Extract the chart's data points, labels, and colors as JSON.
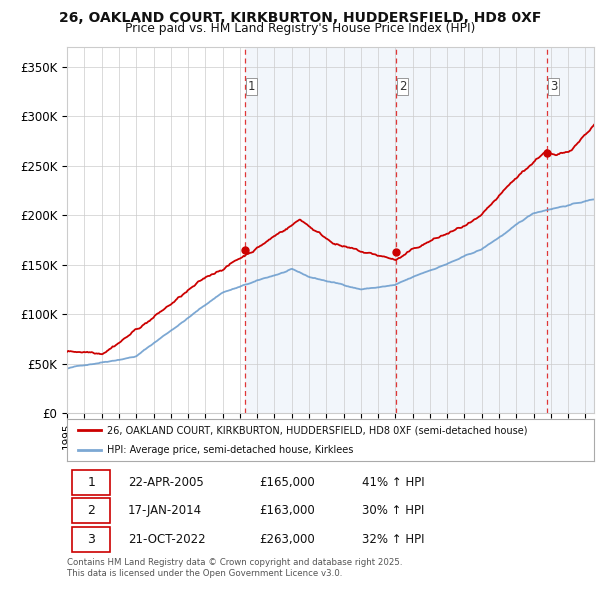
{
  "title1": "26, OAKLAND COURT, KIRKBURTON, HUDDERSFIELD, HD8 0XF",
  "title2": "Price paid vs. HM Land Registry's House Price Index (HPI)",
  "ylim": [
    0,
    370000
  ],
  "yticks": [
    0,
    50000,
    100000,
    150000,
    200000,
    250000,
    300000,
    350000
  ],
  "ytick_labels": [
    "£0",
    "£50K",
    "£100K",
    "£150K",
    "£200K",
    "£250K",
    "£300K",
    "£350K"
  ],
  "xlim_start": 1995.0,
  "xlim_end": 2025.5,
  "sale_dates": [
    2005.3,
    2014.05,
    2022.8
  ],
  "sale_prices": [
    165000,
    163000,
    263000
  ],
  "sale_labels": [
    "1",
    "2",
    "3"
  ],
  "vline_dates": [
    2005.3,
    2014.05,
    2022.8
  ],
  "legend_line1": "26, OAKLAND COURT, KIRKBURTON, HUDDERSFIELD, HD8 0XF (semi-detached house)",
  "legend_line2": "HPI: Average price, semi-detached house, Kirklees",
  "table_rows": [
    [
      "1",
      "22-APR-2005",
      "£165,000",
      "41% ↑ HPI"
    ],
    [
      "2",
      "17-JAN-2014",
      "£163,000",
      "30% ↑ HPI"
    ],
    [
      "3",
      "21-OCT-2022",
      "£263,000",
      "32% ↑ HPI"
    ]
  ],
  "footer": "Contains HM Land Registry data © Crown copyright and database right 2025.\nThis data is licensed under the Open Government Licence v3.0.",
  "red_color": "#cc0000",
  "blue_color": "#6699cc",
  "shade_color": "#dce8f5",
  "plot_bg": "#ffffff",
  "grid_color": "#cccccc"
}
